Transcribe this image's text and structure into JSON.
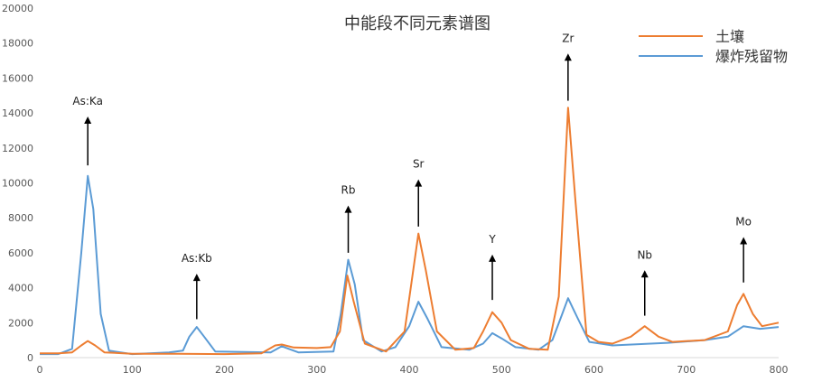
{
  "chart_data": {
    "type": "line",
    "title": "中能段不同元素谱图",
    "xlim": [
      0,
      800
    ],
    "ylim": [
      0,
      20000
    ],
    "x_ticks": [
      0,
      100,
      200,
      300,
      400,
      500,
      600,
      700,
      800
    ],
    "y_ticks": [
      0,
      2000,
      4000,
      6000,
      8000,
      10000,
      12000,
      14000,
      16000,
      18000,
      20000
    ],
    "legend_position": "top-right",
    "grid": false,
    "series": [
      {
        "name": "土壤",
        "color": "#ED7D31",
        "points": [
          [
            0,
            250
          ],
          [
            20,
            250
          ],
          [
            35,
            300
          ],
          [
            45,
            700
          ],
          [
            52,
            950
          ],
          [
            60,
            700
          ],
          [
            70,
            300
          ],
          [
            100,
            220
          ],
          [
            150,
            220
          ],
          [
            200,
            200
          ],
          [
            240,
            250
          ],
          [
            255,
            700
          ],
          [
            262,
            750
          ],
          [
            275,
            580
          ],
          [
            300,
            550
          ],
          [
            315,
            600
          ],
          [
            325,
            1500
          ],
          [
            333,
            4700
          ],
          [
            340,
            3200
          ],
          [
            352,
            800
          ],
          [
            375,
            350
          ],
          [
            395,
            1500
          ],
          [
            410,
            7100
          ],
          [
            418,
            5000
          ],
          [
            430,
            1500
          ],
          [
            450,
            450
          ],
          [
            470,
            550
          ],
          [
            480,
            1500
          ],
          [
            490,
            2600
          ],
          [
            500,
            2000
          ],
          [
            510,
            1000
          ],
          [
            530,
            500
          ],
          [
            550,
            450
          ],
          [
            562,
            3500
          ],
          [
            572,
            14300
          ],
          [
            580,
            9000
          ],
          [
            592,
            1300
          ],
          [
            605,
            900
          ],
          [
            620,
            800
          ],
          [
            640,
            1200
          ],
          [
            655,
            1800
          ],
          [
            670,
            1200
          ],
          [
            685,
            900
          ],
          [
            720,
            1000
          ],
          [
            745,
            1500
          ],
          [
            755,
            3000
          ],
          [
            762,
            3650
          ],
          [
            772,
            2500
          ],
          [
            782,
            1800
          ],
          [
            800,
            2000
          ]
        ]
      },
      {
        "name": "爆炸残留物",
        "color": "#5B9BD5",
        "points": [
          [
            0,
            200
          ],
          [
            20,
            200
          ],
          [
            35,
            500
          ],
          [
            45,
            6000
          ],
          [
            52,
            10400
          ],
          [
            58,
            8500
          ],
          [
            66,
            2500
          ],
          [
            75,
            400
          ],
          [
            100,
            200
          ],
          [
            140,
            300
          ],
          [
            155,
            400
          ],
          [
            162,
            1200
          ],
          [
            170,
            1750
          ],
          [
            178,
            1200
          ],
          [
            190,
            350
          ],
          [
            250,
            300
          ],
          [
            262,
            650
          ],
          [
            280,
            300
          ],
          [
            318,
            350
          ],
          [
            326,
            2500
          ],
          [
            334,
            5600
          ],
          [
            341,
            4200
          ],
          [
            350,
            1000
          ],
          [
            370,
            350
          ],
          [
            385,
            600
          ],
          [
            400,
            1800
          ],
          [
            410,
            3200
          ],
          [
            420,
            2200
          ],
          [
            435,
            600
          ],
          [
            465,
            450
          ],
          [
            480,
            800
          ],
          [
            490,
            1400
          ],
          [
            500,
            1100
          ],
          [
            515,
            600
          ],
          [
            540,
            450
          ],
          [
            555,
            1000
          ],
          [
            565,
            2400
          ],
          [
            572,
            3400
          ],
          [
            582,
            2300
          ],
          [
            595,
            900
          ],
          [
            620,
            700
          ],
          [
            680,
            850
          ],
          [
            720,
            1000
          ],
          [
            745,
            1200
          ],
          [
            762,
            1800
          ],
          [
            780,
            1650
          ],
          [
            800,
            1750
          ]
        ]
      }
    ],
    "annotations": [
      {
        "label": "As:Ka",
        "x": 52,
        "y_tip": 13800,
        "y_base": 11000
      },
      {
        "label": "As:Kb",
        "x": 170,
        "y_tip": 4800,
        "y_base": 2200
      },
      {
        "label": "Rb",
        "x": 334,
        "y_tip": 8700,
        "y_base": 6000
      },
      {
        "label": "Sr",
        "x": 410,
        "y_tip": 10200,
        "y_base": 7500
      },
      {
        "label": "Y",
        "x": 490,
        "y_tip": 5900,
        "y_base": 3300
      },
      {
        "label": "Zr",
        "x": 572,
        "y_tip": 17400,
        "y_base": 14700
      },
      {
        "label": "Nb",
        "x": 655,
        "y_tip": 5000,
        "y_base": 2400
      },
      {
        "label": "Mo",
        "x": 762,
        "y_tip": 6900,
        "y_base": 4300
      }
    ]
  }
}
